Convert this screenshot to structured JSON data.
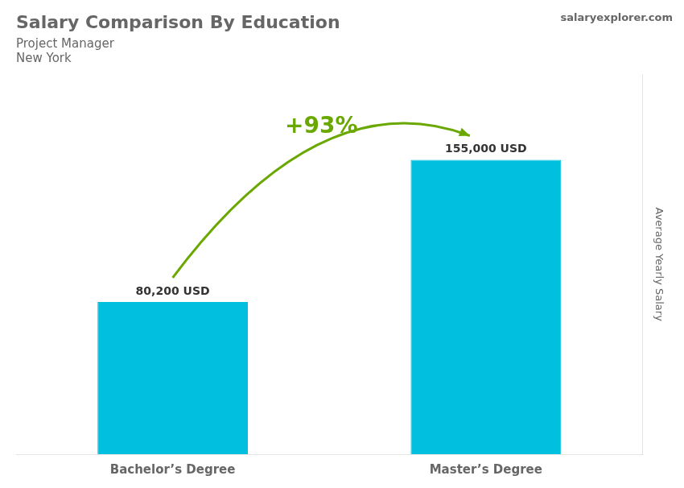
{
  "chart_data": {
    "type": "bar",
    "title": "Salary Comparison By Education",
    "subtitle": [
      "Project Manager",
      "New York"
    ],
    "categories": [
      "Bachelor’s Degree",
      "Master’s Degree"
    ],
    "values": [
      80200,
      155000
    ],
    "value_labels": [
      "80,200 USD",
      "155,000 USD"
    ],
    "data_labels": true,
    "color": "#00BFDF",
    "ylabel": "Average Yearly Salary",
    "ylim": [
      0,
      200000
    ],
    "yticks": [
      0,
      50000,
      100000,
      150000,
      200000
    ],
    "grid": false,
    "tick_labels": "x",
    "legend": false,
    "annotations": [
      "+93%",
      "salaryexplorer.com"
    ]
  }
}
